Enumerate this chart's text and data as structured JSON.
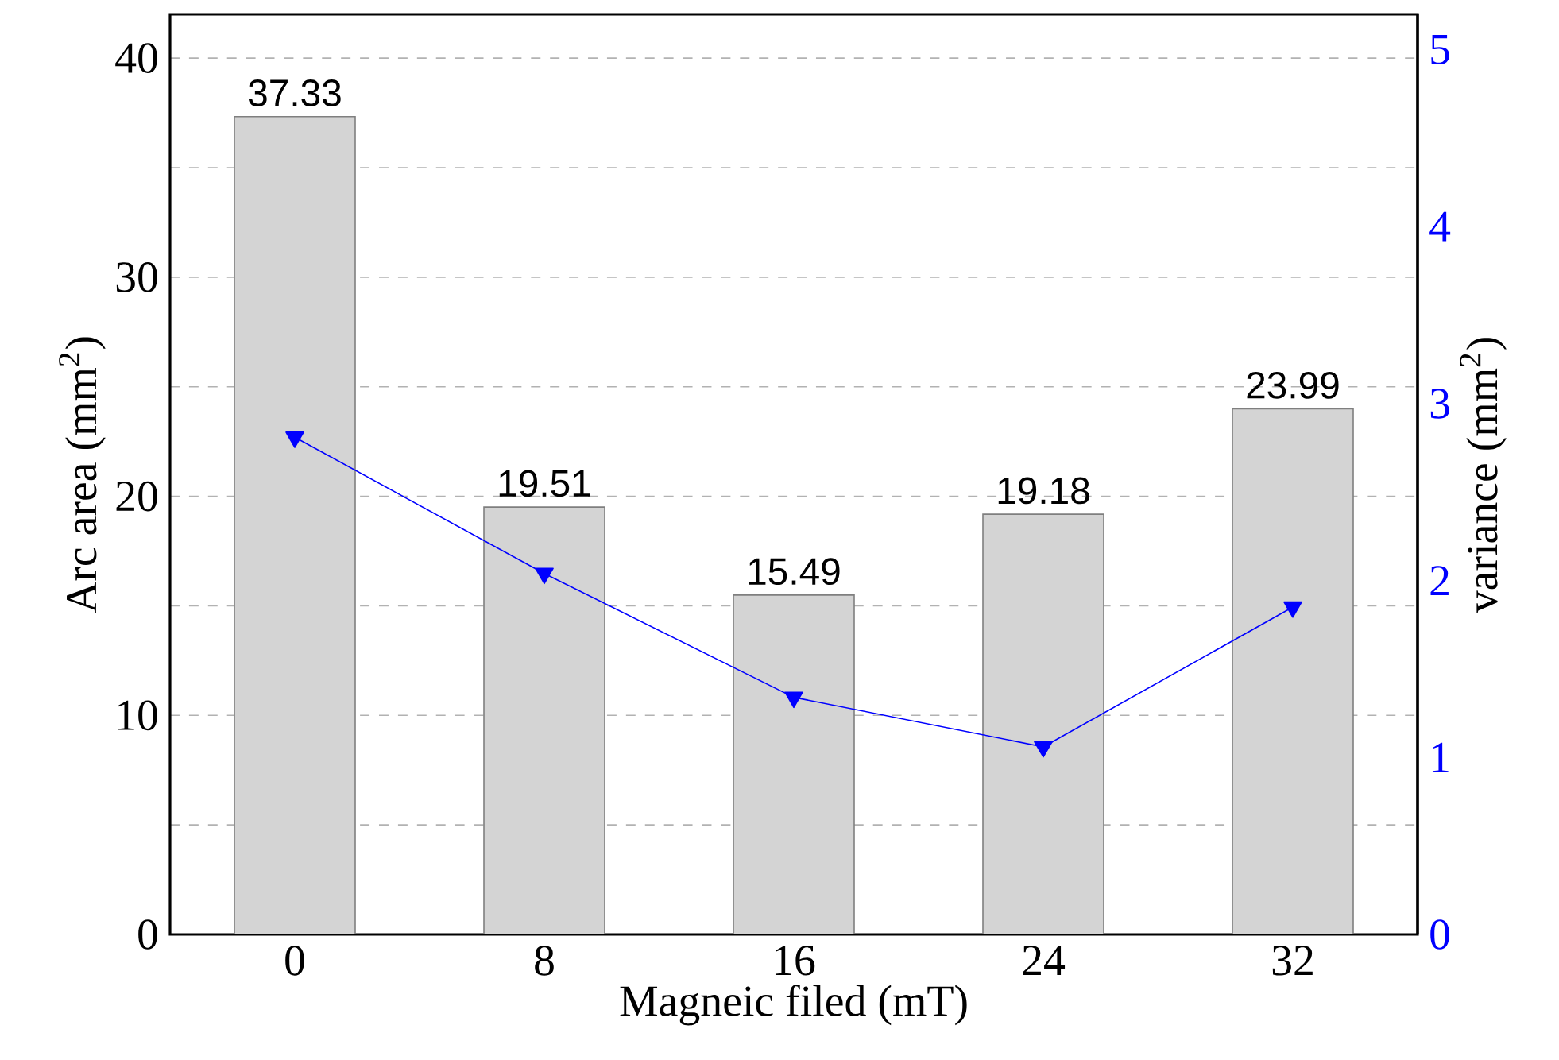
{
  "chart_data": {
    "type": "bar",
    "xlabel": "Magneic filed (mT)",
    "ylabel": "Arc area (mm$^{2}$)",
    "y2label": "variance (mm$^{2}$)",
    "categories": [
      "0",
      "8",
      "16",
      "24",
      "32"
    ],
    "series": [
      {
        "color": "#d4d4d4",
        "values": [
          37.33,
          19.51,
          15.49,
          19.18,
          23.99
        ],
        "value_labels": [
          "37.33",
          "19.51",
          "15.49",
          "19.18",
          "23.99"
        ]
      },
      {
        "type": "line",
        "axis": "y2",
        "color": "#0000ff",
        "marker": "triangle",
        "values": [
          2.81,
          2.04,
          1.34,
          1.06,
          1.85
        ]
      }
    ],
    "ylim": [
      0,
      42
    ],
    "yticks": [
      0,
      {
        "value": 5,
        "label": null
      },
      10,
      {
        "value": 15,
        "label": null
      },
      20,
      {
        "value": 25,
        "label": null
      },
      30,
      {
        "value": 35,
        "label": null
      },
      40
    ],
    "y2lim": [
      0,
      5.2
    ],
    "y2ticks": [
      0,
      1,
      2,
      3,
      4,
      5
    ],
    "grid": "y"
  }
}
